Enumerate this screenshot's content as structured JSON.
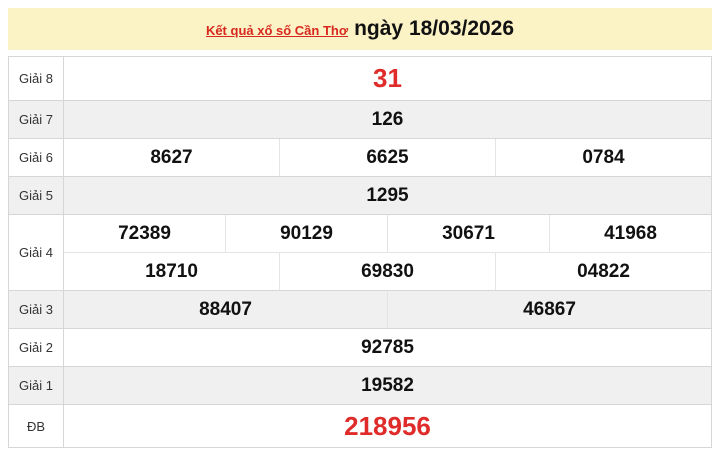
{
  "header": {
    "link_text": "Kết quả xổ số Cần Thơ",
    "date_text": "ngày 18/03/2026"
  },
  "colors": {
    "header_bg": "#fbf2c6",
    "highlight": "#e02b2b",
    "link": "#d8281e"
  },
  "prizes": [
    {
      "label": "Giải 8",
      "rows": [
        [
          "31"
        ]
      ]
    },
    {
      "label": "Giải 7",
      "rows": [
        [
          "126"
        ]
      ]
    },
    {
      "label": "Giải 6",
      "rows": [
        [
          "8627",
          "6625",
          "0784"
        ]
      ]
    },
    {
      "label": "Giải 5",
      "rows": [
        [
          "1295"
        ]
      ]
    },
    {
      "label": "Giải 4",
      "rows": [
        [
          "72389",
          "90129",
          "30671",
          "41968"
        ],
        [
          "18710",
          "69830",
          "04822"
        ]
      ]
    },
    {
      "label": "Giải 3",
      "rows": [
        [
          "88407",
          "46867"
        ]
      ]
    },
    {
      "label": "Giải 2",
      "rows": [
        [
          "92785"
        ]
      ]
    },
    {
      "label": "Giải 1",
      "rows": [
        [
          "19582"
        ]
      ]
    },
    {
      "label": "ĐB",
      "rows": [
        [
          "218956"
        ]
      ]
    }
  ]
}
